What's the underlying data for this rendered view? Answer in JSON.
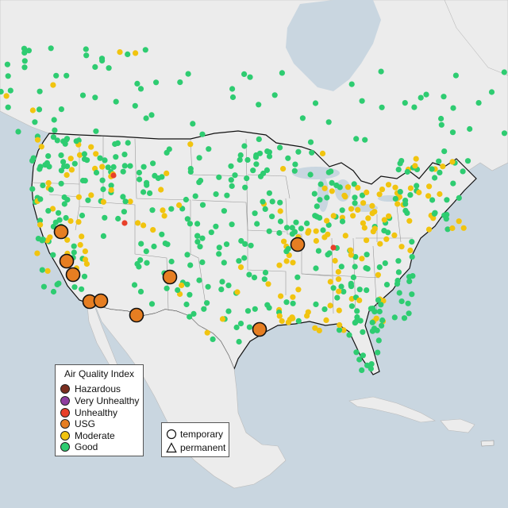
{
  "legend": {
    "title": "Air Quality Index",
    "categories": [
      {
        "label": "Hazardous",
        "color": "#7a2e1f"
      },
      {
        "label": "Very Unhealthy",
        "color": "#8e3fa0"
      },
      {
        "label": "Unhealthy",
        "color": "#e8402a"
      },
      {
        "label": "USG",
        "color": "#e67e22"
      },
      {
        "label": "Moderate",
        "color": "#f1c40f"
      },
      {
        "label": "Good",
        "color": "#2ecc71"
      }
    ]
  },
  "shape_legend": {
    "items": [
      {
        "label": "temporary",
        "shape": "circle"
      },
      {
        "label": "permanent",
        "shape": "triangle"
      }
    ]
  },
  "colors": {
    "ocean": "#c9d6e0",
    "land": "#ececec",
    "border": "#111111",
    "state_line": "#999999"
  }
}
